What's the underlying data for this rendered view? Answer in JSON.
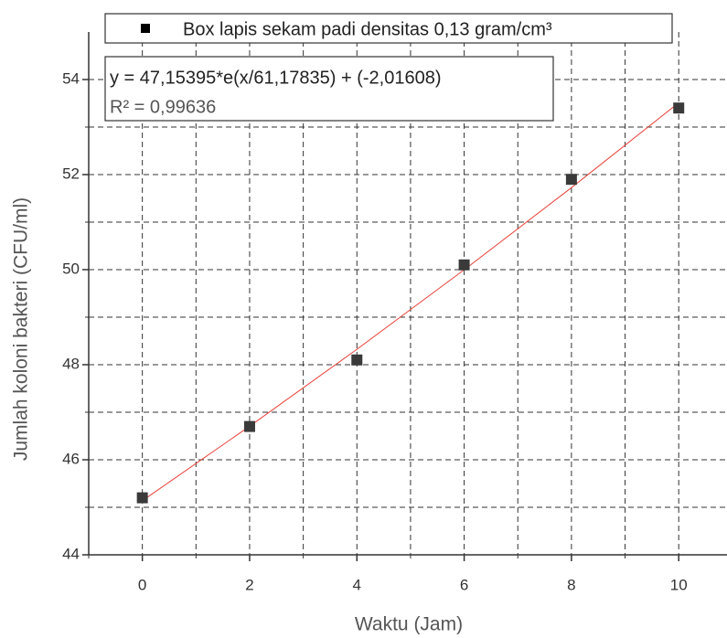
{
  "chart_data": {
    "type": "scatter",
    "x_label": "Waktu (Jam)",
    "y_label": "Jumlah koloni bakteri (CFU/ml)",
    "series": [
      {
        "name": "Box lapis sekam padi densitas 0,13 gram/cm³",
        "color": "#3a3a3a",
        "x": [
          0,
          2,
          4,
          6,
          8,
          10
        ],
        "values": [
          45.2,
          46.7,
          48.1,
          50.1,
          51.9,
          53.4
        ]
      }
    ],
    "fit": {
      "color": "#e8423a",
      "x": [
        0,
        2,
        4,
        6,
        8,
        10
      ],
      "values": [
        45.138,
        46.705,
        48.324,
        49.997,
        51.725,
        53.511
      ],
      "equation": "y = 47,15395*e(x/61,17835) + (-2,01608)",
      "r2": "R² = 0,99636"
    },
    "xlim": [
      -1,
      10.9
    ],
    "ylim": [
      44,
      55
    ],
    "xticks": [
      0,
      2,
      4,
      6,
      8,
      10
    ],
    "yticks": [
      44,
      46,
      48,
      50,
      52,
      54
    ],
    "minor_xticks": [
      -1,
      1,
      3,
      5,
      7,
      9
    ],
    "minor_yticks": [
      45,
      47,
      49,
      51,
      53
    ],
    "grid": true
  }
}
